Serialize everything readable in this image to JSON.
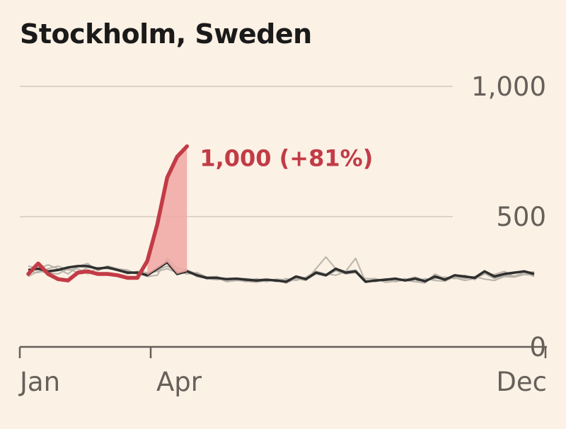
{
  "colors": {
    "background": "#fbf1e5",
    "highlight": "#c23b46",
    "highlight_fill": "#f0a7a5",
    "baseline_dark": "#2f2f2f",
    "baseline_light": "#b9b3aa",
    "grid": "#ddd4c8",
    "axis": "#66605a"
  },
  "chart_data": {
    "type": "line",
    "title": "Stockholm, Sweden",
    "x_ticks": [
      "Jan",
      "Apr",
      "Dec"
    ],
    "y_ticks": [
      "0",
      "500",
      "1,000"
    ],
    "ylim": [
      0,
      1000
    ],
    "x_units": "week of year (1-52)",
    "grid": true,
    "annotation": "1,000 (+81%)",
    "series": [
      {
        "role": "highlight",
        "x": [
          1,
          2,
          3,
          4,
          5,
          6,
          7,
          8,
          9,
          10,
          11,
          12,
          13,
          14,
          15,
          16,
          17
        ],
        "values": [
          280,
          320,
          280,
          260,
          255,
          285,
          290,
          280,
          280,
          275,
          265,
          265,
          330,
          470,
          650,
          730,
          770
        ]
      },
      {
        "role": "baseline-average",
        "x": [
          1,
          2,
          3,
          4,
          5,
          6,
          7,
          8,
          9,
          10,
          11,
          12,
          13,
          14,
          15,
          16,
          17,
          18,
          19,
          20,
          21,
          22,
          23,
          24,
          25,
          26,
          27,
          28,
          29,
          30,
          31,
          32,
          33,
          34,
          35,
          36,
          37,
          38,
          39,
          40,
          41,
          42,
          43,
          44,
          45,
          46,
          47,
          48,
          49,
          50,
          51,
          52
        ],
        "values": [
          295,
          300,
          290,
          295,
          305,
          310,
          310,
          300,
          305,
          295,
          285,
          285,
          275,
          300,
          325,
          280,
          290,
          275,
          265,
          265,
          260,
          262,
          258,
          255,
          258,
          255,
          250,
          270,
          260,
          285,
          275,
          300,
          285,
          290,
          250,
          255,
          258,
          262,
          255,
          262,
          252,
          270,
          258,
          275,
          270,
          265,
          290,
          270,
          280,
          285,
          290,
          280
        ]
      },
      {
        "role": "previous-year",
        "values": [
          270,
          290,
          285,
          280,
          300,
          285,
          305,
          300,
          310,
          300,
          290,
          285,
          270,
          275,
          340,
          300,
          295,
          280,
          260,
          265,
          250,
          255,
          252,
          248,
          255,
          258,
          245,
          262,
          255,
          300,
          345,
          300,
          290,
          340,
          250,
          260,
          255,
          258,
          255,
          250,
          245,
          280,
          262,
          265,
          255,
          262,
          280,
          278,
          290,
          270,
          285,
          270
        ]
      },
      {
        "role": "previous-year",
        "values": [
          290,
          285,
          300,
          310,
          295,
          300,
          280,
          305,
          300,
          295,
          280,
          290,
          285,
          290,
          300,
          285,
          292,
          270,
          262,
          258,
          262,
          258,
          250,
          262,
          250,
          260,
          258,
          265,
          258,
          280,
          272,
          292,
          280,
          285,
          262,
          262,
          248,
          252,
          262,
          250,
          262,
          255,
          252,
          270,
          262,
          270,
          260,
          255,
          270,
          268,
          278,
          275
        ]
      },
      {
        "role": "previous-year",
        "values": [
          310,
          300,
          315,
          300,
          280,
          310,
          320,
          292,
          310,
          300,
          295,
          278,
          280,
          295,
          310,
          290,
          280,
          285,
          268,
          270,
          255,
          262,
          262,
          258,
          260,
          250,
          262,
          255,
          268,
          290,
          280,
          275,
          290,
          295,
          255,
          250,
          262,
          250,
          258,
          268,
          255,
          262,
          268,
          262,
          275,
          258,
          282,
          262,
          275,
          272,
          285,
          288
        ]
      }
    ]
  }
}
